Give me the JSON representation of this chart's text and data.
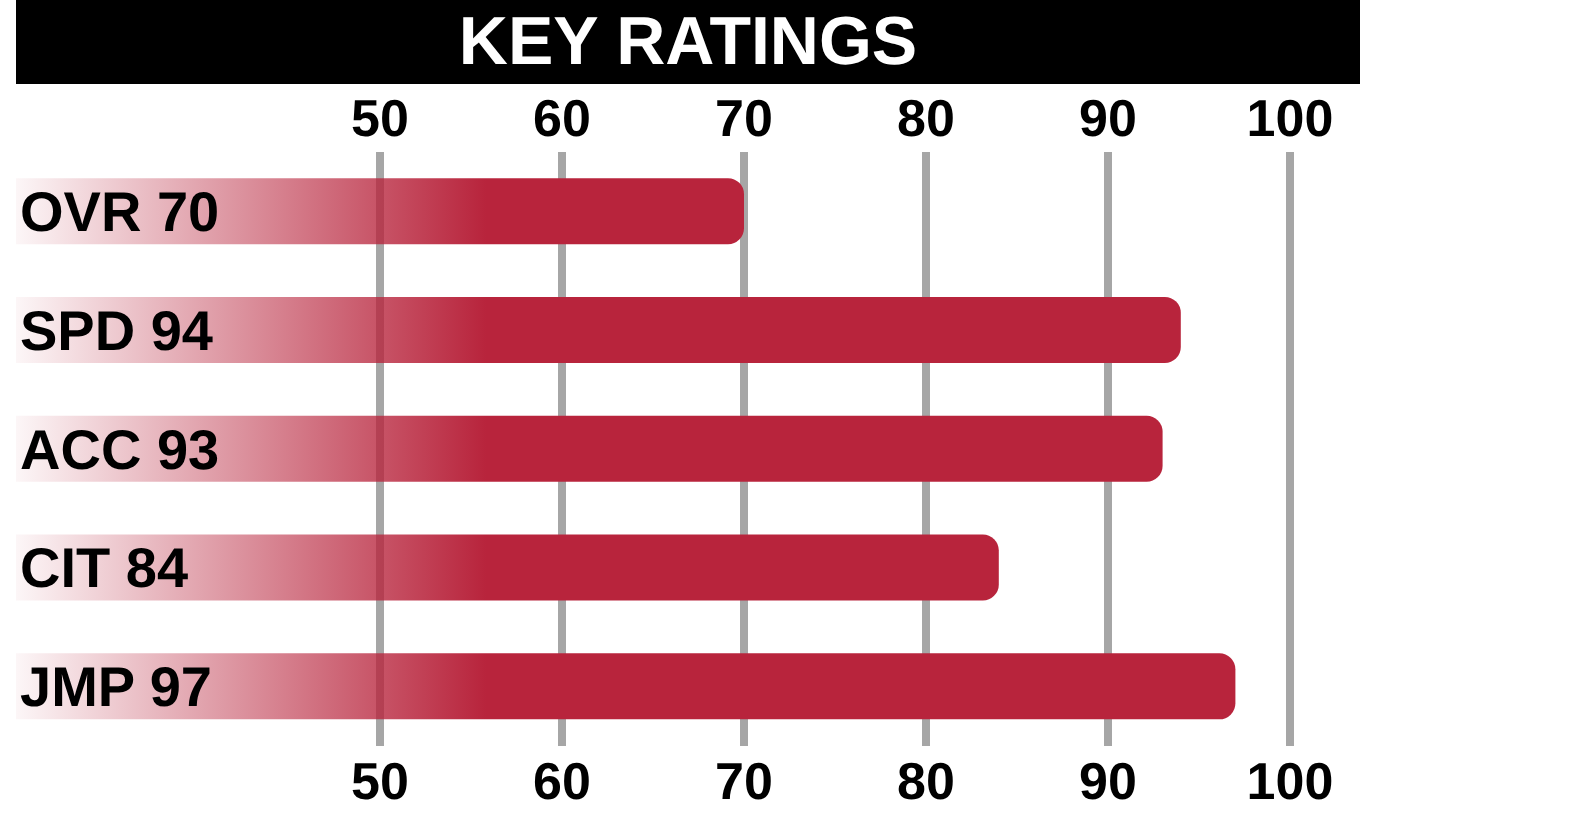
{
  "chart_data": {
    "type": "bar",
    "orientation": "horizontal",
    "title": "KEY RATINGS",
    "categories": [
      "OVR 70",
      "SPD 94",
      "ACC 93",
      "CIT 84",
      "JMP 97"
    ],
    "values": [
      70,
      94,
      93,
      84,
      97
    ],
    "color": "#b8243c",
    "xlim": [
      30,
      100
    ],
    "xticks": [
      50,
      60,
      70,
      80,
      90,
      100
    ],
    "x2lim": [
      30,
      100
    ],
    "x2ticks": [
      50,
      60,
      70,
      80,
      90,
      100
    ],
    "grid": "x"
  }
}
